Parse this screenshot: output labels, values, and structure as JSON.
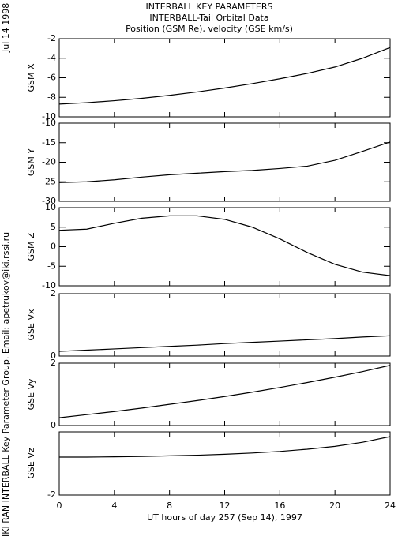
{
  "header": {
    "title": [
      "INTERBALL KEY PARAMETERS",
      "INTERBALL-Tail Orbital Data",
      "Position (GSM Re), velocity (GSE km/s)"
    ],
    "date": "Jul 14 1998",
    "credit": "IKI RAN INTERBALL Key Parameter Group, Email: apetrukov@iki.rssi.ru"
  },
  "chart_data": [
    {
      "type": "line",
      "ylabel": "GSM X",
      "x": [
        0,
        2,
        4,
        6,
        8,
        10,
        12,
        14,
        16,
        18,
        20,
        22,
        24
      ],
      "xlim": [
        0,
        24
      ],
      "xticks": [
        0,
        4,
        8,
        12,
        16,
        20,
        24
      ],
      "values": [
        -8.7,
        -8.55,
        -8.35,
        -8.1,
        -7.8,
        -7.45,
        -7.05,
        -6.6,
        -6.1,
        -5.55,
        -4.9,
        -4.0,
        -2.9
      ],
      "color": "#000000",
      "ylim": [
        -10,
        -2
      ],
      "yticks": [
        -10,
        -8,
        -6,
        -4,
        -2
      ]
    },
    {
      "type": "line",
      "ylabel": "GSM Y",
      "x": [
        0,
        2,
        4,
        6,
        8,
        10,
        12,
        14,
        16,
        18,
        20,
        22,
        24
      ],
      "xlim": [
        0,
        24
      ],
      "xticks": [
        0,
        4,
        8,
        12,
        16,
        20,
        24
      ],
      "values": [
        -25.2,
        -25.0,
        -24.5,
        -23.8,
        -23.2,
        -22.8,
        -22.4,
        -22.1,
        -21.6,
        -21.0,
        -19.5,
        -17.2,
        -14.8
      ],
      "color": "#000000",
      "ylim": [
        -30,
        -10
      ],
      "yticks": [
        -30,
        -25,
        -20,
        -15,
        -10
      ]
    },
    {
      "type": "line",
      "ylabel": "GSM Z",
      "x": [
        0,
        2,
        4,
        6,
        8,
        10,
        12,
        14,
        16,
        18,
        20,
        22,
        24
      ],
      "xlim": [
        0,
        24
      ],
      "xticks": [
        0,
        4,
        8,
        12,
        16,
        20,
        24
      ],
      "values": [
        4.2,
        4.5,
        6.0,
        7.3,
        7.9,
        7.9,
        7.0,
        5.0,
        2.0,
        -1.5,
        -4.5,
        -6.5,
        -7.4
      ],
      "color": "#000000",
      "ylim": [
        -10,
        10
      ],
      "yticks": [
        -10,
        -5,
        0,
        5,
        10
      ]
    },
    {
      "type": "line",
      "ylabel": "GSE Vx",
      "x": [
        0,
        2,
        4,
        6,
        8,
        10,
        12,
        14,
        16,
        18,
        20,
        22,
        24
      ],
      "xlim": [
        0,
        24
      ],
      "xticks": [
        0,
        4,
        8,
        12,
        16,
        20,
        24
      ],
      "values": [
        0.15,
        0.19,
        0.23,
        0.27,
        0.31,
        0.35,
        0.4,
        0.44,
        0.48,
        0.52,
        0.56,
        0.61,
        0.65
      ],
      "color": "#000000",
      "ylim": [
        0,
        2
      ],
      "yticks": [
        0,
        2
      ]
    },
    {
      "type": "line",
      "ylabel": "GSE Vy",
      "x": [
        0,
        2,
        4,
        6,
        8,
        10,
        12,
        14,
        16,
        18,
        20,
        22,
        24
      ],
      "xlim": [
        0,
        24
      ],
      "xticks": [
        0,
        4,
        8,
        12,
        16,
        20,
        24
      ],
      "values": [
        0.25,
        0.35,
        0.45,
        0.56,
        0.68,
        0.8,
        0.93,
        1.07,
        1.22,
        1.38,
        1.55,
        1.73,
        1.93
      ],
      "color": "#000000",
      "ylim": [
        0,
        2
      ],
      "yticks": [
        0,
        2
      ]
    },
    {
      "type": "line",
      "ylabel": "GSE Vz",
      "xlabel": "UT hours of day 257 (Sep 14), 1997",
      "x": [
        0,
        2,
        4,
        6,
        8,
        10,
        12,
        14,
        16,
        18,
        20,
        22,
        24
      ],
      "xlim": [
        0,
        24
      ],
      "xticks": [
        0,
        4,
        8,
        12,
        16,
        20,
        24
      ],
      "values": [
        -0.8,
        -0.8,
        -0.79,
        -0.78,
        -0.76,
        -0.74,
        -0.71,
        -0.67,
        -0.62,
        -0.55,
        -0.46,
        -0.33,
        -0.15
      ],
      "color": "#000000",
      "ylim": [
        -2,
        0
      ],
      "yticks": [
        -2
      ]
    }
  ]
}
